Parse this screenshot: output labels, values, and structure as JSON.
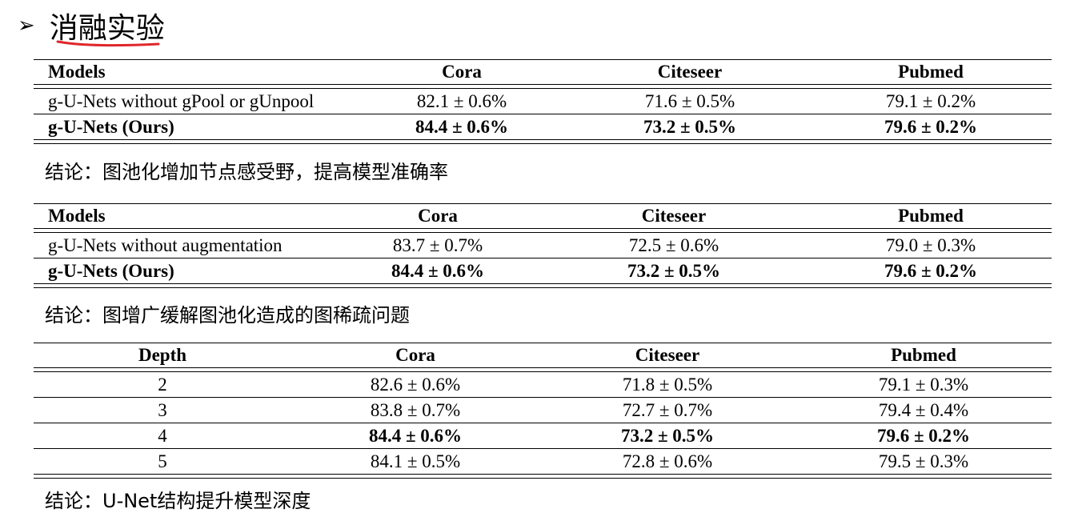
{
  "slide": {
    "bullet": "➢",
    "title": "消融实验"
  },
  "table1": {
    "headers": [
      "Models",
      "Cora",
      "Citeseer",
      "Pubmed"
    ],
    "rows": [
      [
        "g-U-Nets without gPool or gUnpool",
        "82.1 ± 0.6%",
        "71.6 ± 0.5%",
        "79.1 ± 0.2%"
      ],
      [
        "g-U-Nets (Ours)",
        "84.4 ± 0.6%",
        "73.2 ± 0.5%",
        "79.6 ± 0.2%"
      ]
    ]
  },
  "conclusion1": "结论：图池化增加节点感受野，提高模型准确率",
  "table2": {
    "headers": [
      "Models",
      "Cora",
      "Citeseer",
      "Pubmed"
    ],
    "rows": [
      [
        "g-U-Nets without augmentation",
        "83.7 ± 0.7%",
        "72.5 ± 0.6%",
        "79.0 ± 0.3%"
      ],
      [
        "g-U-Nets (Ours)",
        "84.4 ± 0.6%",
        "73.2 ± 0.5%",
        "79.6 ± 0.2%"
      ]
    ]
  },
  "conclusion2": "结论：图增广缓解图池化造成的图稀疏问题",
  "table3": {
    "headers": [
      "Depth",
      "Cora",
      "Citeseer",
      "Pubmed"
    ],
    "rows": [
      [
        "2",
        "82.6 ± 0.6%",
        "71.8 ± 0.5%",
        "79.1 ± 0.3%"
      ],
      [
        "3",
        "83.8 ± 0.7%",
        "72.7 ± 0.7%",
        "79.4 ± 0.4%"
      ],
      [
        "4",
        "84.4 ± 0.6%",
        "73.2 ± 0.5%",
        "79.6 ± 0.2%"
      ],
      [
        "5",
        "84.1 ± 0.5%",
        "72.8 ± 0.6%",
        "79.5 ± 0.3%"
      ]
    ]
  },
  "conclusion3": "结论：U-Net结构提升模型深度",
  "colors": {
    "annotation_underline": "#e0262b"
  }
}
